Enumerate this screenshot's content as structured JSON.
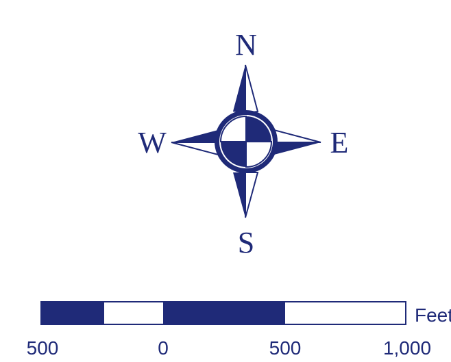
{
  "compass": {
    "north": "N",
    "south": "S",
    "east": "E",
    "west": "W",
    "icon": "compass-rose-icon",
    "color": "#1f2a78"
  },
  "scale_bar": {
    "labels": [
      "500",
      "0",
      "500",
      "1,000"
    ],
    "unit": "Feet",
    "segments": [
      "filled",
      "empty",
      "filled",
      "filled",
      "empty"
    ],
    "color": "#1f2a78"
  }
}
